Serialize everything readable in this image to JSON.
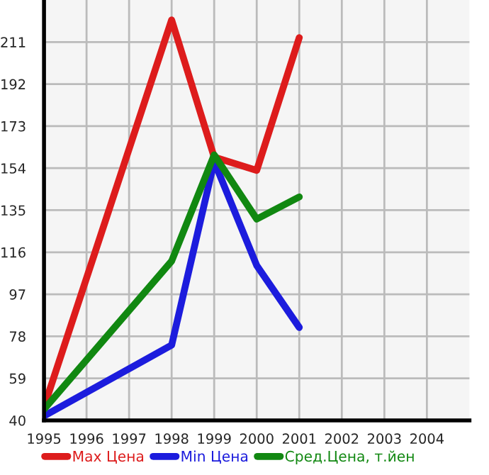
{
  "chart_data": {
    "type": "line",
    "x": [
      1995,
      1998,
      1999,
      2000,
      2001
    ],
    "series": [
      {
        "name": "Max Цена",
        "color": "#dd1c1c",
        "values": [
          46,
          221,
          159,
          153,
          213
        ]
      },
      {
        "name": "Min Цена",
        "color": "#1c1cdd",
        "values": [
          42,
          74,
          157,
          110,
          82
        ]
      },
      {
        "name": "Сред.Цена, т.йен",
        "color": "#118811",
        "values": [
          45,
          112,
          160,
          131,
          141
        ]
      }
    ],
    "xlim": [
      1995,
      2005
    ],
    "xticks": [
      1995,
      1996,
      1997,
      1998,
      1999,
      2000,
      2001,
      2002,
      2003,
      2004
    ],
    "ylim": [
      40,
      230
    ],
    "yticks": [
      40,
      59,
      78,
      97,
      116,
      135,
      154,
      173,
      192,
      211
    ],
    "grid": true,
    "legend": "bottom",
    "marker": "none",
    "line_style": "solid"
  }
}
